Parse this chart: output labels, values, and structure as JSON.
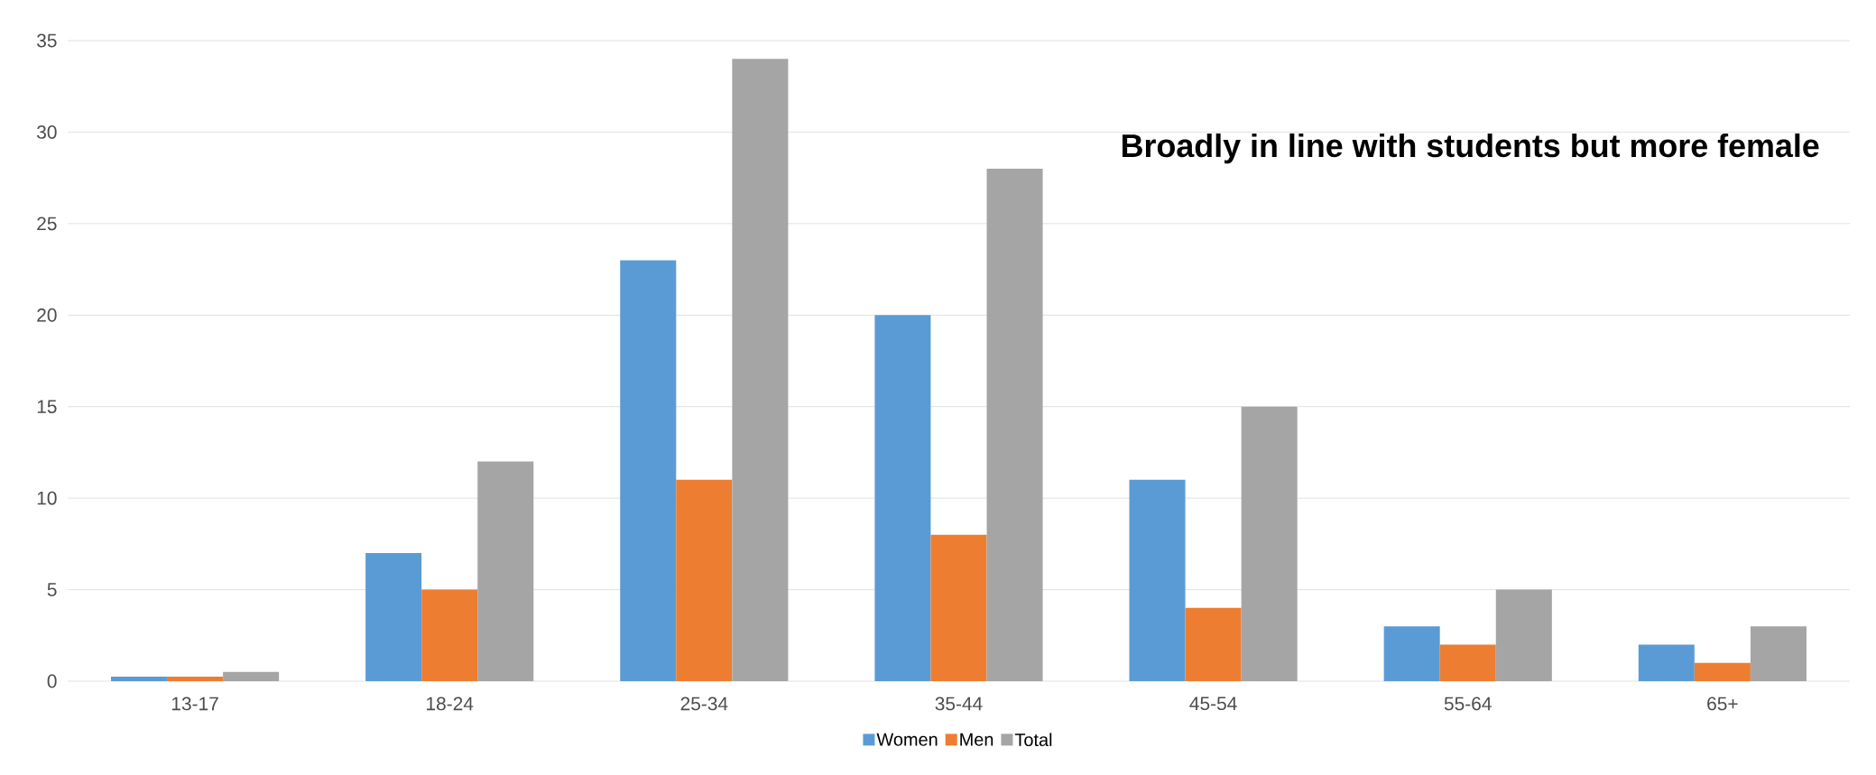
{
  "chart_data": {
    "type": "bar",
    "title": "Broadly in line with students but more female",
    "categories": [
      "13-17",
      "18-24",
      "25-34",
      "35-44",
      "45-54",
      "55-64",
      "65+"
    ],
    "series": [
      {
        "name": "Women",
        "color": "#5b9bd5",
        "values": [
          0.25,
          7,
          23,
          20,
          11,
          3,
          2
        ]
      },
      {
        "name": "Men",
        "color": "#ed7d31",
        "values": [
          0.25,
          5,
          11,
          8,
          4,
          2,
          1
        ]
      },
      {
        "name": "Total",
        "color": "#a5a5a5",
        "values": [
          0.5,
          12,
          34,
          28,
          15,
          5,
          3
        ]
      }
    ],
    "ylim": [
      0,
      35
    ],
    "yticks": [
      0,
      5,
      10,
      15,
      20,
      25,
      30,
      35
    ],
    "grid": "y",
    "legend": "bottom"
  }
}
